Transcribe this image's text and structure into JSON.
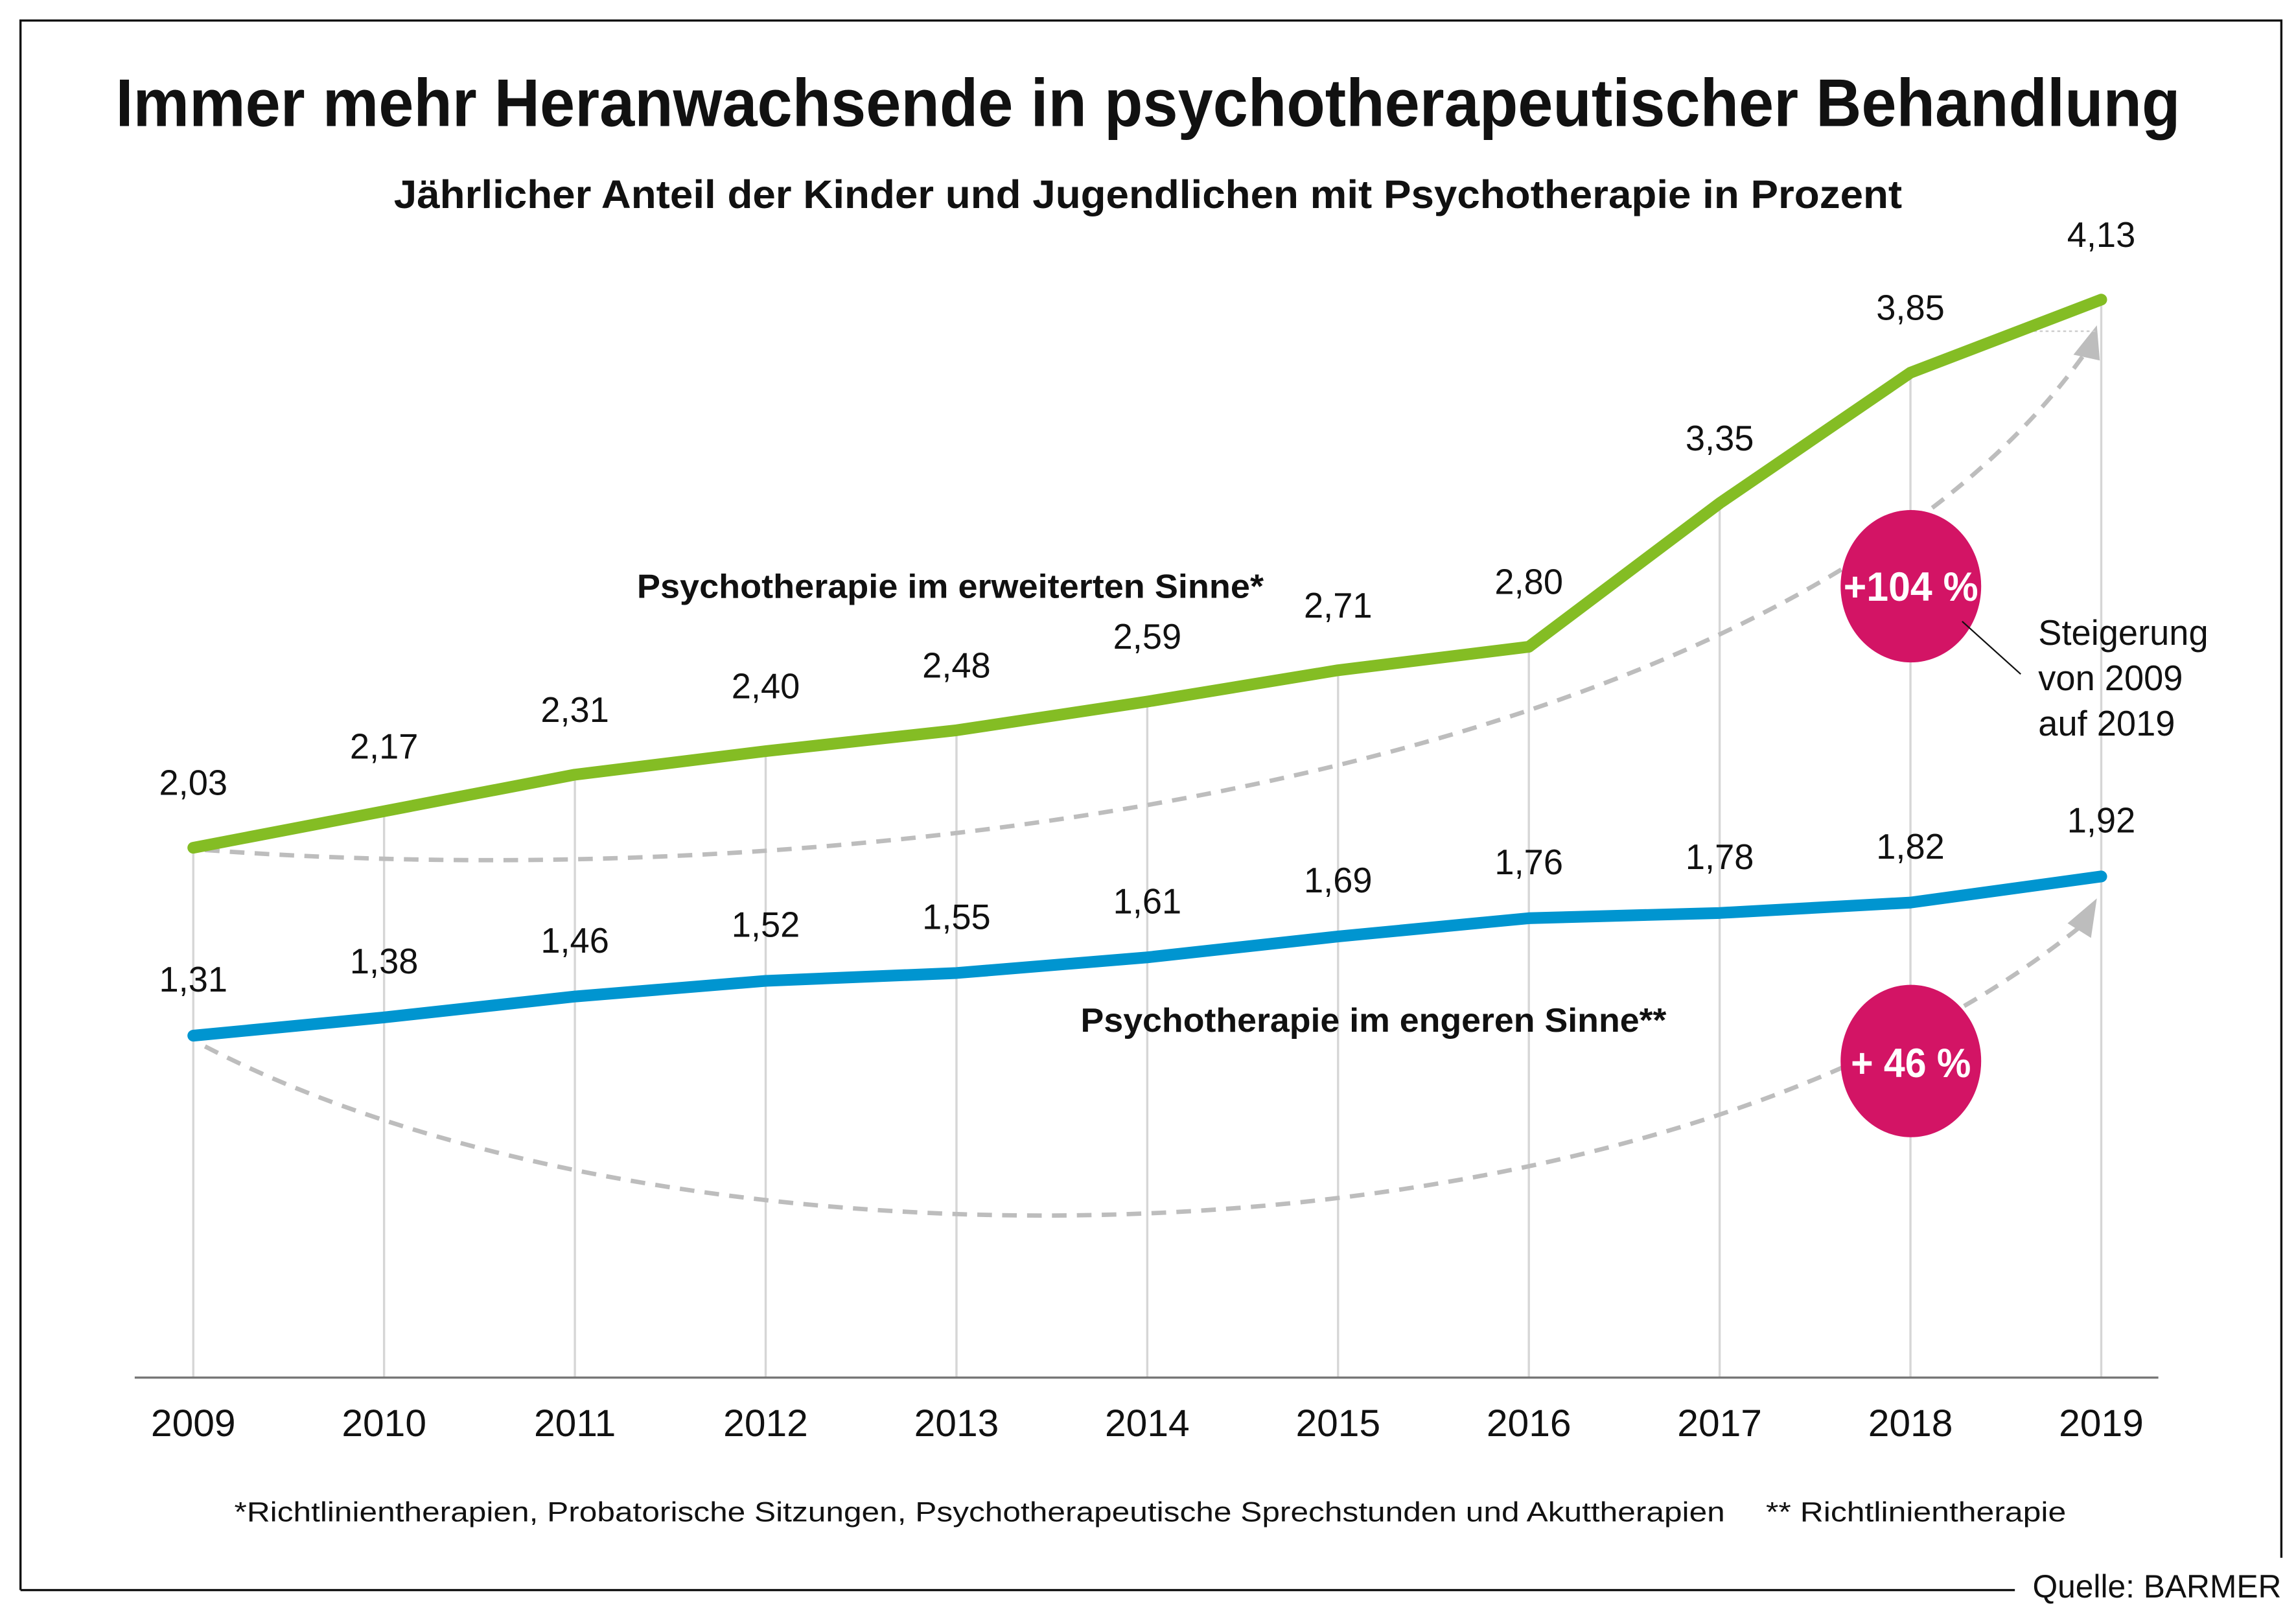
{
  "chart_data": {
    "type": "line",
    "title": "Immer mehr Heranwachsende in psychotherapeutischer Behandlung",
    "subtitle": "Jährlicher Anteil der Kinder und Jugendlichen mit Psychotherapie in Prozent",
    "xlabel": "",
    "ylabel": "",
    "ylim": [
      0,
      4.4
    ],
    "grid": "vertical",
    "categories": [
      "2009",
      "2010",
      "2011",
      "2012",
      "2013",
      "2014",
      "2015",
      "2016",
      "2017",
      "2018",
      "2019"
    ],
    "series": [
      {
        "name": "Psychotherapie im erweiterten Sinne*",
        "color": "#84bd24",
        "values": [
          2.03,
          2.17,
          2.31,
          2.4,
          2.48,
          2.59,
          2.71,
          2.8,
          3.35,
          3.85,
          4.13
        ],
        "labels": [
          "2,03",
          "2,17",
          "2,31",
          "2,40",
          "2,48",
          "2,59",
          "2,71",
          "2,80",
          "3,35",
          "3,85",
          "4,13"
        ]
      },
      {
        "name": "Psychotherapie im engeren Sinne**",
        "color": "#0095d0",
        "values": [
          1.31,
          1.38,
          1.46,
          1.52,
          1.55,
          1.61,
          1.69,
          1.76,
          1.78,
          1.82,
          1.92
        ],
        "labels": [
          "1,31",
          "1,38",
          "1,46",
          "1,52",
          "1,55",
          "1,61",
          "1,69",
          "1,76",
          "1,78",
          "1,82",
          "1,92"
        ]
      }
    ],
    "annotations": {
      "increase_wide": "+104 %",
      "increase_narrow": "+ 46 %",
      "badge_color": "#d31465",
      "callout": [
        "Steigerung",
        "von 2009",
        "auf 2019"
      ]
    },
    "footnote_1": "*Richtlinientherapien, Probatorische Sitzungen, Psychotherapeutische Sprechstunden und Akuttherapien",
    "footnote_2": "** Richtlinientherapie",
    "source": "Quelle: BARMER"
  }
}
